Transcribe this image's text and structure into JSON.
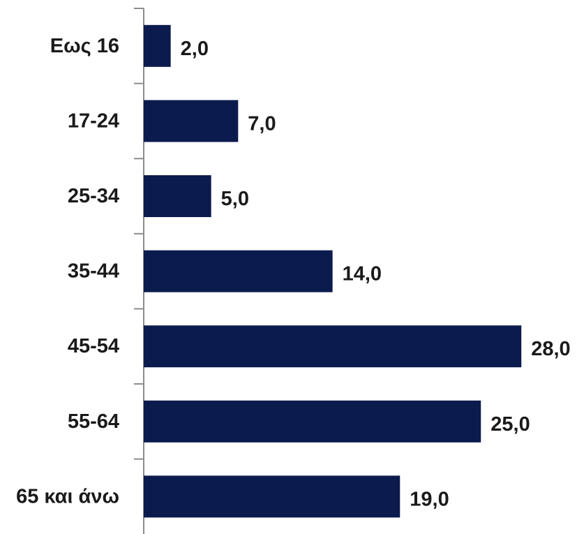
{
  "chart_data": {
    "type": "bar",
    "orientation": "horizontal",
    "categories": [
      "Εως 16",
      "17-24",
      "25-34",
      "35-44",
      "45-54",
      "55-64",
      "65 και άνω"
    ],
    "values": [
      2.0,
      7.0,
      5.0,
      14.0,
      28.0,
      25.0,
      19.0
    ],
    "value_labels": [
      "2,0",
      "7,0",
      "5,0",
      "14,0",
      "28,0",
      "25,0",
      "19,0"
    ],
    "bar_color": "#0c1b4d",
    "axis_color": "#8c8c8c",
    "label_color": "#1a1a1a",
    "xlim": [
      0,
      28
    ],
    "grid": false,
    "legend": "none"
  }
}
